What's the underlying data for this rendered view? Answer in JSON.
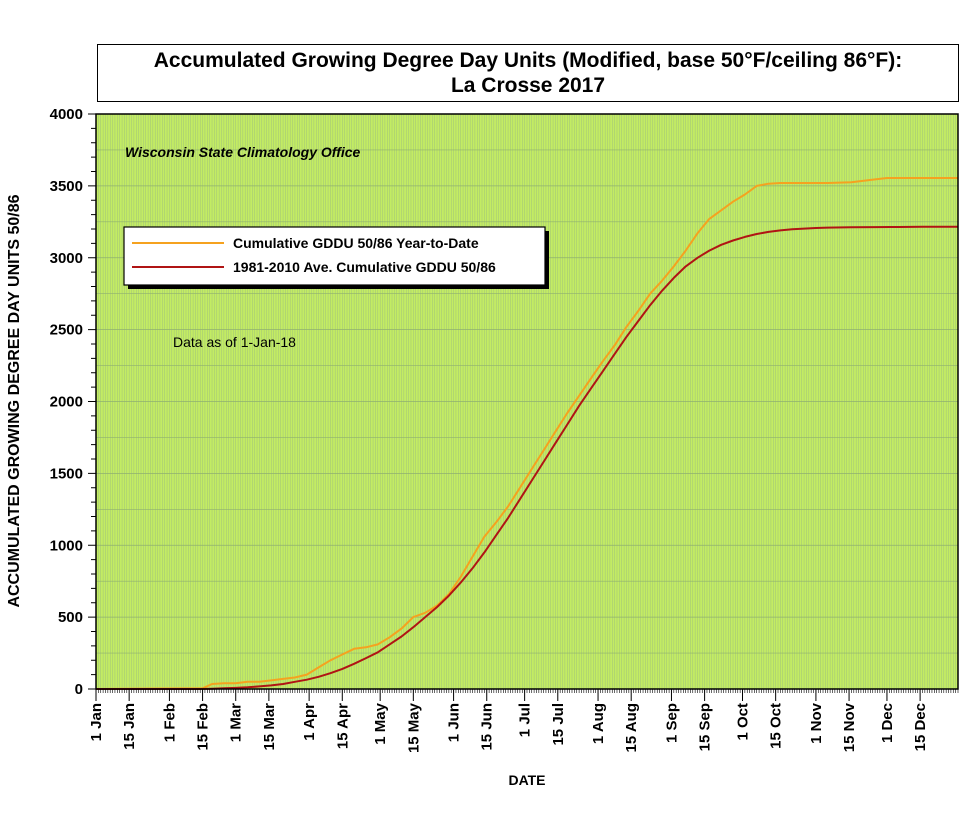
{
  "chart_data": {
    "type": "line",
    "title": "Accumulated Growing Degree Day Units (Modified, base 50°F/ceiling 86°F):",
    "subtitle": "La Crosse 2017",
    "annotation_source": "Wisconsin State Climatology Office",
    "annotation_asof": "Data as of 1-Jan-18",
    "xlabel": "DATE",
    "ylabel": "ACCUMULATED GROWING DEGREE DAY UNITS 50/86",
    "x_unit": "day of year",
    "xlim": [
      1,
      365
    ],
    "ylim": [
      0,
      4000
    ],
    "y_ticks": [
      0,
      500,
      1000,
      1500,
      2000,
      2500,
      3000,
      3500,
      4000
    ],
    "y_tick_labels": [
      "0",
      "500",
      "1000",
      "1500",
      "2000",
      "2500",
      "3000",
      "3500",
      "4000"
    ],
    "x_ticks": [
      1,
      15,
      32,
      46,
      60,
      74,
      91,
      105,
      121,
      135,
      152,
      166,
      182,
      196,
      213,
      227,
      244,
      258,
      274,
      288,
      305,
      319,
      335,
      349
    ],
    "x_tick_labels": [
      "1 Jan",
      "15 Jan",
      "1 Feb",
      "15 Feb",
      "1 Mar",
      "15 Mar",
      "1 Apr",
      "15 Apr",
      "1 May",
      "15 May",
      "1 Jun",
      "15 Jun",
      "1 Jul",
      "15 Jul",
      "1 Aug",
      "15 Aug",
      "1 Sep",
      "15 Sep",
      "1 Oct",
      "15 Oct",
      "1 Nov",
      "15 Nov",
      "1 Dec",
      "15 Dec"
    ],
    "grid": true,
    "legend_position": "upper-left",
    "series": [
      {
        "name": "Cumulative GDDU 50/86 Year-to-Date",
        "color": "#f5a21f",
        "x": [
          1,
          46,
          50,
          55,
          60,
          65,
          70,
          75,
          80,
          85,
          90,
          95,
          100,
          105,
          110,
          115,
          120,
          125,
          130,
          135,
          140,
          145,
          150,
          155,
          160,
          165,
          170,
          175,
          180,
          185,
          190,
          195,
          200,
          205,
          210,
          215,
          220,
          225,
          230,
          235,
          240,
          245,
          250,
          255,
          260,
          265,
          270,
          275,
          280,
          285,
          290,
          295,
          300,
          305,
          310,
          320,
          330,
          335,
          340,
          365
        ],
        "y": [
          0,
          5,
          35,
          40,
          40,
          50,
          50,
          60,
          70,
          80,
          100,
          150,
          200,
          240,
          280,
          290,
          310,
          360,
          420,
          500,
          530,
          580,
          660,
          780,
          920,
          1060,
          1160,
          1270,
          1400,
          1530,
          1660,
          1790,
          1920,
          2040,
          2160,
          2280,
          2390,
          2520,
          2630,
          2750,
          2840,
          2940,
          3050,
          3170,
          3270,
          3330,
          3390,
          3440,
          3500,
          3515,
          3520,
          3520,
          3520,
          3520,
          3520,
          3525,
          3545,
          3555,
          3555,
          3555
        ]
      },
      {
        "name": "1981-2010 Ave. Cumulative GDDU 50/86",
        "color": "#b01414",
        "x": [
          1,
          45,
          50,
          55,
          60,
          65,
          70,
          75,
          80,
          85,
          90,
          95,
          100,
          105,
          110,
          115,
          120,
          125,
          130,
          135,
          140,
          145,
          150,
          155,
          160,
          165,
          170,
          175,
          180,
          185,
          190,
          195,
          200,
          205,
          210,
          215,
          220,
          225,
          230,
          235,
          240,
          245,
          250,
          255,
          260,
          265,
          270,
          275,
          280,
          285,
          290,
          295,
          300,
          305,
          310,
          320,
          330,
          340,
          350,
          365
        ],
        "y": [
          0,
          0,
          2,
          5,
          8,
          12,
          18,
          25,
          35,
          50,
          65,
          85,
          110,
          140,
          175,
          215,
          255,
          310,
          365,
          430,
          500,
          570,
          650,
          740,
          840,
          950,
          1070,
          1190,
          1320,
          1450,
          1580,
          1710,
          1840,
          1970,
          2090,
          2210,
          2330,
          2450,
          2560,
          2670,
          2770,
          2860,
          2940,
          3000,
          3050,
          3090,
          3120,
          3145,
          3165,
          3180,
          3190,
          3198,
          3203,
          3207,
          3210,
          3212,
          3213,
          3214,
          3215,
          3215
        ]
      }
    ]
  }
}
